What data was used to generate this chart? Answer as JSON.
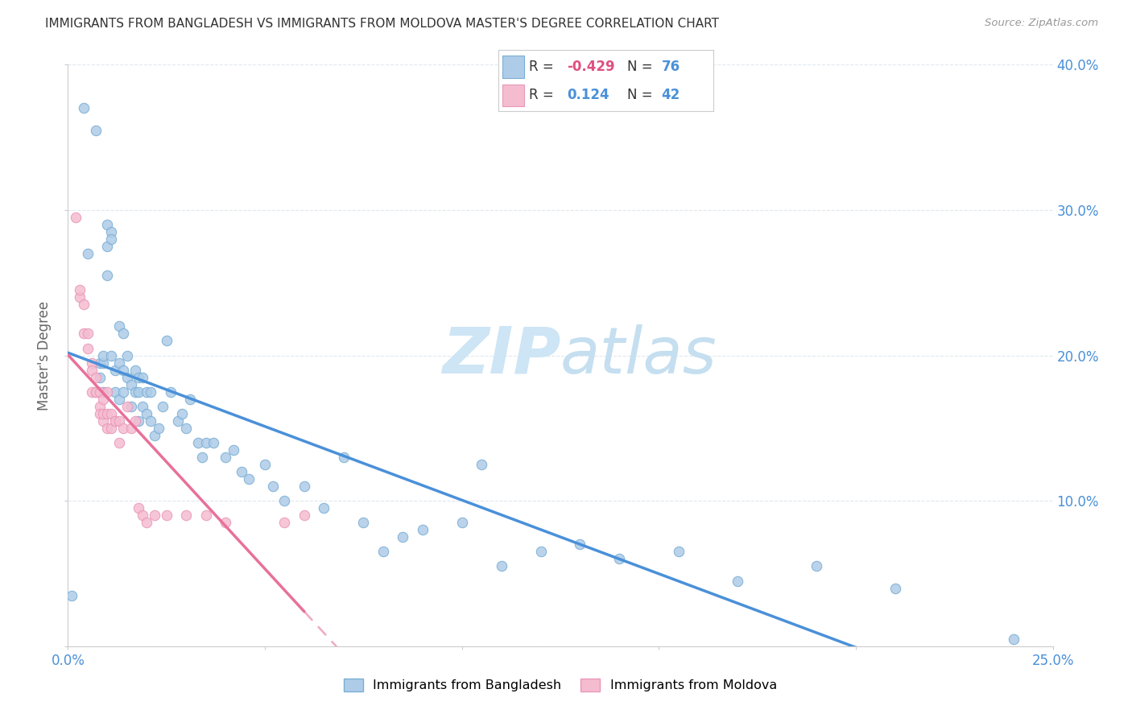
{
  "title": "IMMIGRANTS FROM BANGLADESH VS IMMIGRANTS FROM MOLDOVA MASTER'S DEGREE CORRELATION CHART",
  "source": "Source: ZipAtlas.com",
  "ylabel": "Master's Degree",
  "x_min": 0.0,
  "x_max": 0.25,
  "y_min": 0.0,
  "y_max": 0.4,
  "bangladesh_color": "#aecce8",
  "moldova_color": "#f5bcd0",
  "bangladesh_edge_color": "#7aaed4",
  "moldova_edge_color": "#e898b8",
  "bangladesh_line_color": "#4a90d9",
  "moldova_line_color": "#e8709a",
  "legend_r_bangladesh": "-0.429",
  "legend_n_bangladesh": "76",
  "legend_r_moldova": "0.124",
  "legend_n_moldova": "42",
  "legend_label_bangladesh": "Immigrants from Bangladesh",
  "legend_label_moldova": "Immigrants from Moldova",
  "bangladesh_x": [
    0.001,
    0.004,
    0.005,
    0.007,
    0.008,
    0.008,
    0.009,
    0.009,
    0.009,
    0.01,
    0.01,
    0.01,
    0.011,
    0.011,
    0.011,
    0.012,
    0.012,
    0.013,
    0.013,
    0.013,
    0.014,
    0.014,
    0.014,
    0.015,
    0.015,
    0.016,
    0.016,
    0.017,
    0.017,
    0.018,
    0.018,
    0.018,
    0.019,
    0.019,
    0.02,
    0.02,
    0.021,
    0.021,
    0.022,
    0.023,
    0.024,
    0.025,
    0.026,
    0.028,
    0.029,
    0.03,
    0.031,
    0.033,
    0.034,
    0.035,
    0.037,
    0.04,
    0.042,
    0.044,
    0.046,
    0.05,
    0.052,
    0.055,
    0.06,
    0.065,
    0.07,
    0.075,
    0.08,
    0.085,
    0.09,
    0.1,
    0.105,
    0.11,
    0.12,
    0.13,
    0.14,
    0.155,
    0.17,
    0.19,
    0.21,
    0.24
  ],
  "bangladesh_y": [
    0.035,
    0.37,
    0.27,
    0.355,
    0.195,
    0.185,
    0.175,
    0.195,
    0.2,
    0.29,
    0.275,
    0.255,
    0.285,
    0.28,
    0.2,
    0.19,
    0.175,
    0.22,
    0.195,
    0.17,
    0.175,
    0.19,
    0.215,
    0.185,
    0.2,
    0.18,
    0.165,
    0.175,
    0.19,
    0.185,
    0.175,
    0.155,
    0.165,
    0.185,
    0.175,
    0.16,
    0.175,
    0.155,
    0.145,
    0.15,
    0.165,
    0.21,
    0.175,
    0.155,
    0.16,
    0.15,
    0.17,
    0.14,
    0.13,
    0.14,
    0.14,
    0.13,
    0.135,
    0.12,
    0.115,
    0.125,
    0.11,
    0.1,
    0.11,
    0.095,
    0.13,
    0.085,
    0.065,
    0.075,
    0.08,
    0.085,
    0.125,
    0.055,
    0.065,
    0.07,
    0.06,
    0.065,
    0.045,
    0.055,
    0.04,
    0.005
  ],
  "moldova_x": [
    0.002,
    0.003,
    0.003,
    0.004,
    0.004,
    0.005,
    0.005,
    0.006,
    0.006,
    0.006,
    0.007,
    0.007,
    0.007,
    0.008,
    0.008,
    0.008,
    0.009,
    0.009,
    0.009,
    0.01,
    0.01,
    0.01,
    0.011,
    0.011,
    0.012,
    0.012,
    0.013,
    0.013,
    0.014,
    0.015,
    0.016,
    0.017,
    0.018,
    0.019,
    0.02,
    0.022,
    0.025,
    0.03,
    0.035,
    0.04,
    0.055,
    0.06
  ],
  "moldova_y": [
    0.295,
    0.24,
    0.245,
    0.215,
    0.235,
    0.205,
    0.215,
    0.195,
    0.19,
    0.175,
    0.175,
    0.175,
    0.185,
    0.175,
    0.165,
    0.16,
    0.17,
    0.155,
    0.16,
    0.16,
    0.175,
    0.15,
    0.15,
    0.16,
    0.155,
    0.155,
    0.14,
    0.155,
    0.15,
    0.165,
    0.15,
    0.155,
    0.095,
    0.09,
    0.085,
    0.09,
    0.09,
    0.09,
    0.09,
    0.085,
    0.085,
    0.09
  ],
  "background_color": "#ffffff",
  "watermark_text": "ZIPatlas",
  "watermark_color": "#cde5f5",
  "grid_color": "#e0e8ee"
}
